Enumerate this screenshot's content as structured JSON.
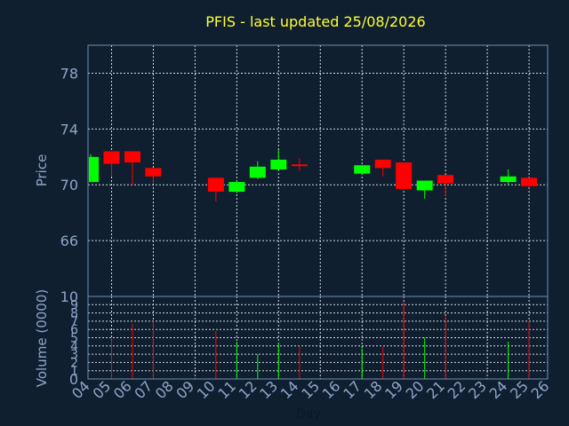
{
  "chart_data": {
    "type": "candlestick",
    "title": "PFIS - last updated 25/08/2026",
    "xlabel": "Day",
    "price_panel": {
      "ylabel": "Price",
      "yticks": [
        66,
        70,
        74,
        78
      ],
      "ylim": [
        62,
        80
      ],
      "candles": [
        {
          "day": 4,
          "open": 70.2,
          "high": 72.2,
          "low": 70.2,
          "close": 72.0,
          "color": "#00ff00"
        },
        {
          "day": 5,
          "open": 72.4,
          "high": 72.4,
          "low": 70.6,
          "close": 71.5,
          "color": "#ff0000"
        },
        {
          "day": 6,
          "open": 72.4,
          "high": 72.4,
          "low": 70.0,
          "close": 71.6,
          "color": "#ff0000"
        },
        {
          "day": 7,
          "open": 71.2,
          "high": 71.2,
          "low": 70.1,
          "close": 70.6,
          "color": "#ff0000"
        },
        {
          "day": 10,
          "open": 70.5,
          "high": 70.5,
          "low": 68.8,
          "close": 69.5,
          "color": "#ff0000"
        },
        {
          "day": 11,
          "open": 69.5,
          "high": 70.3,
          "low": 69.4,
          "close": 70.2,
          "color": "#00ff00"
        },
        {
          "day": 12,
          "open": 70.5,
          "high": 71.7,
          "low": 70.4,
          "close": 71.3,
          "color": "#00ff00"
        },
        {
          "day": 13,
          "open": 71.1,
          "high": 72.5,
          "low": 71.0,
          "close": 71.8,
          "color": "#00ff00"
        },
        {
          "day": 14,
          "open": 71.4,
          "high": 71.9,
          "low": 71.0,
          "close": 71.3,
          "color": "#ff0000"
        },
        {
          "day": 17,
          "open": 70.8,
          "high": 71.4,
          "low": 70.7,
          "close": 71.4,
          "color": "#00ff00"
        },
        {
          "day": 18,
          "open": 71.8,
          "high": 71.8,
          "low": 70.6,
          "close": 71.2,
          "color": "#ff0000"
        },
        {
          "day": 19,
          "open": 71.6,
          "high": 71.6,
          "low": 69.7,
          "close": 69.7,
          "color": "#ff0000"
        },
        {
          "day": 20,
          "open": 69.6,
          "high": 70.3,
          "low": 69.0,
          "close": 70.3,
          "color": "#00ff00"
        },
        {
          "day": 21,
          "open": 70.7,
          "high": 70.7,
          "low": 69.2,
          "close": 70.1,
          "color": "#ff0000"
        },
        {
          "day": 24,
          "open": 70.2,
          "high": 71.1,
          "low": 70.0,
          "close": 70.6,
          "color": "#00ff00"
        },
        {
          "day": 25,
          "open": 70.5,
          "high": 70.5,
          "low": 69.8,
          "close": 69.9,
          "color": "#ff0000"
        }
      ]
    },
    "volume_panel": {
      "ylabel": "Volume (0000)",
      "yticks_major": [
        0,
        10
      ],
      "yticks_minor": [
        1,
        2,
        3,
        4,
        5,
        6,
        7,
        8,
        9
      ],
      "ylim": [
        0,
        10
      ],
      "bars": [
        {
          "day": 5,
          "value": 4.8,
          "color": "#ff0000"
        },
        {
          "day": 6,
          "value": 6.7,
          "color": "#ff0000"
        },
        {
          "day": 7,
          "value": 7.0,
          "color": "#ff0000"
        },
        {
          "day": 10,
          "value": 5.8,
          "color": "#ff0000"
        },
        {
          "day": 11,
          "value": 4.5,
          "color": "#00ff00"
        },
        {
          "day": 12,
          "value": 3.0,
          "color": "#00ff00"
        },
        {
          "day": 13,
          "value": 4.4,
          "color": "#00ff00"
        },
        {
          "day": 14,
          "value": 4.0,
          "color": "#ff0000"
        },
        {
          "day": 17,
          "value": 3.7,
          "color": "#00ff00"
        },
        {
          "day": 18,
          "value": 3.9,
          "color": "#ff0000"
        },
        {
          "day": 19,
          "value": 9.3,
          "color": "#ff0000"
        },
        {
          "day": 20,
          "value": 5.0,
          "color": "#00ff00"
        },
        {
          "day": 21,
          "value": 7.6,
          "color": "#ff0000"
        },
        {
          "day": 24,
          "value": 4.5,
          "color": "#00ff00"
        },
        {
          "day": 25,
          "value": 7.0,
          "color": "#ff0000"
        }
      ]
    },
    "x_ticks": [
      "04",
      "05",
      "06",
      "07",
      "08",
      "09",
      "10",
      "11",
      "12",
      "13",
      "14",
      "15",
      "16",
      "17",
      "18",
      "19",
      "20",
      "21",
      "22",
      "23",
      "24",
      "25",
      "26"
    ],
    "grid": true,
    "colors": {
      "background": "#0f1f30",
      "frame": "#6f8fb7",
      "grid": "#d0d8e0",
      "title": "#ffff33",
      "text": "#8fa6c8",
      "up": "#00ff00",
      "down": "#ff0000"
    }
  }
}
